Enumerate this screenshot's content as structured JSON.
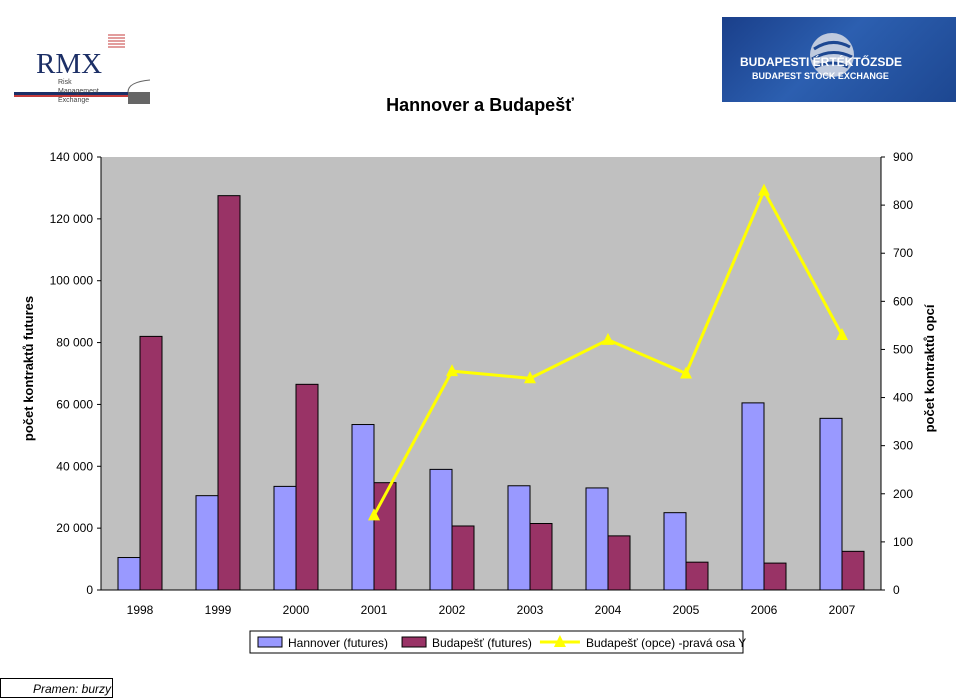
{
  "logos": {
    "rmx": {
      "name": "RMX",
      "lines": [
        "Risk",
        "Management",
        "Exchange"
      ]
    },
    "bse": {
      "line1": "BUDAPESTI   ÉRTÉKTŐZSDE",
      "line2": "BUDAPEST STOCK EXCHANGE"
    }
  },
  "chart_data": {
    "type": "bar",
    "title": "Hannover a Budapešť",
    "categories": [
      "1998",
      "1999",
      "2000",
      "2001",
      "2002",
      "2003",
      "2004",
      "2005",
      "2006",
      "2007"
    ],
    "ylabel": "počet kontraktů futures",
    "y2label": "počet kontraktů opcí",
    "ylim": [
      0,
      140000
    ],
    "y2lim": [
      0,
      900
    ],
    "y_ticks": [
      "0",
      "20 000",
      "40 000",
      "60 000",
      "80 000",
      "100 000",
      "120 000",
      "140 000"
    ],
    "y2_ticks": [
      "0",
      "100",
      "200",
      "300",
      "400",
      "500",
      "600",
      "700",
      "800",
      "900"
    ],
    "grid": false,
    "legend": "bottom",
    "series": [
      {
        "name": "Hannover (futures)",
        "kind": "bar",
        "axis": "left",
        "color": "#9999ff",
        "values": [
          10500,
          30500,
          33500,
          53500,
          39000,
          33700,
          33000,
          25000,
          60500,
          55500
        ]
      },
      {
        "name": "Budapešť (futures)",
        "kind": "bar",
        "axis": "left",
        "color": "#993366",
        "values": [
          82000,
          127500,
          66500,
          34700,
          20700,
          21500,
          17500,
          9000,
          8700,
          12500
        ]
      },
      {
        "name": "Budapešť (opce) -pravá osa Y",
        "kind": "line",
        "axis": "right",
        "color": "#ffff00",
        "values": [
          null,
          null,
          null,
          155,
          455,
          440,
          520,
          450,
          830,
          530
        ]
      }
    ]
  },
  "footer": {
    "source": "Pramen: burzy"
  }
}
